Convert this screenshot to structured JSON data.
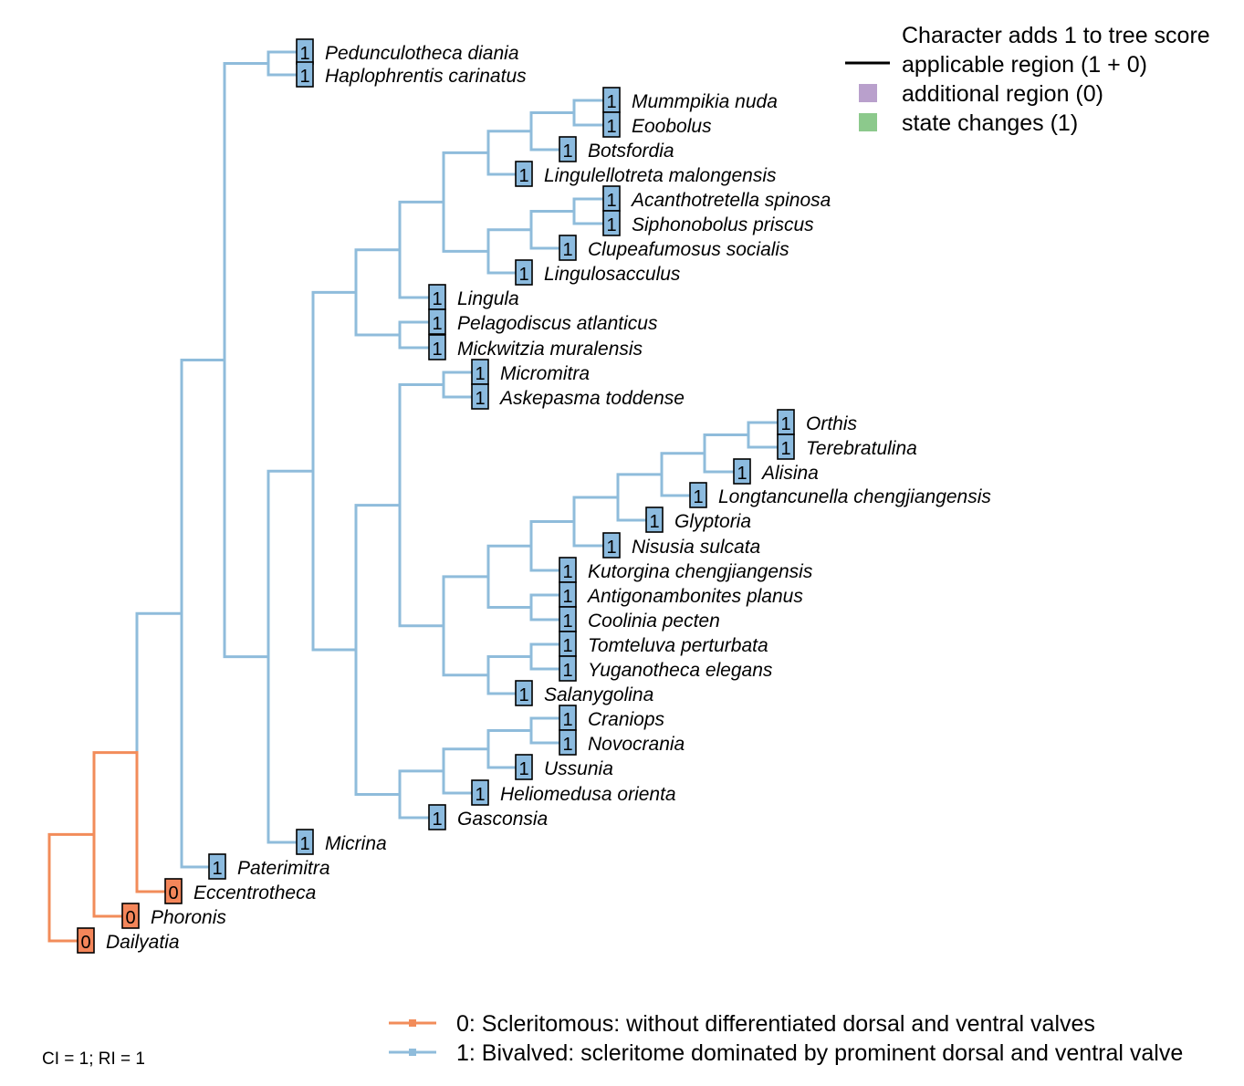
{
  "colors": {
    "state0": "#F28C5A",
    "state1": "#8FBCDB",
    "state0_box": "#F4865A",
    "state1_box": "#8CBBDF",
    "additional_region": "#B9A0CC",
    "state_changes": "#8CC98C"
  },
  "legend_top": {
    "title": "Character adds 1 to tree score",
    "items": [
      {
        "label": "applicable region (1 + 0)",
        "swatch": "line",
        "color": "#000000"
      },
      {
        "label": "additional region (0)",
        "swatch": "square",
        "color": "#B9A0CC"
      },
      {
        "label": "state changes (1)",
        "swatch": "square",
        "color": "#8CC98C"
      }
    ]
  },
  "legend_bottom": {
    "items": [
      {
        "label": "0: Scleritomous: without differentiated dorsal and ventral valves",
        "color": "#F28C5A"
      },
      {
        "label": "1: Bivalved: scleritome dominated by prominent dorsal and ventral valve",
        "color": "#8FBCDB"
      }
    ]
  },
  "stats": "CI = 1; RI = 1",
  "taxa": [
    {
      "name": "Pedunculotheca diania",
      "state": "1"
    },
    {
      "name": "Haplophrentis carinatus",
      "state": "1"
    },
    {
      "name": "Mummpikia nuda",
      "state": "1"
    },
    {
      "name": "Eoobolus",
      "state": "1"
    },
    {
      "name": "Botsfordia",
      "state": "1"
    },
    {
      "name": "Lingulellotreta malongensis",
      "state": "1"
    },
    {
      "name": "Acanthotretella spinosa",
      "state": "1"
    },
    {
      "name": "Siphonobolus priscus",
      "state": "1"
    },
    {
      "name": "Clupeafumosus socialis",
      "state": "1"
    },
    {
      "name": "Lingulosacculus",
      "state": "1"
    },
    {
      "name": "Lingula",
      "state": "1"
    },
    {
      "name": "Pelagodiscus atlanticus",
      "state": "1"
    },
    {
      "name": "Mickwitzia muralensis",
      "state": "1"
    },
    {
      "name": "Micromitra",
      "state": "1"
    },
    {
      "name": "Askepasma toddense",
      "state": "1"
    },
    {
      "name": "Orthis",
      "state": "1"
    },
    {
      "name": "Terebratulina",
      "state": "1"
    },
    {
      "name": "Alisina",
      "state": "1"
    },
    {
      "name": "Longtancunella chengjiangensis",
      "state": "1"
    },
    {
      "name": "Glyptoria",
      "state": "1"
    },
    {
      "name": "Nisusia sulcata",
      "state": "1"
    },
    {
      "name": "Kutorgina chengjiangensis",
      "state": "1"
    },
    {
      "name": "Antigonambonites planus",
      "state": "1"
    },
    {
      "name": "Coolinia pecten",
      "state": "1"
    },
    {
      "name": "Tomteluva perturbata",
      "state": "1"
    },
    {
      "name": "Yuganotheca elegans",
      "state": "1"
    },
    {
      "name": "Salanygolina",
      "state": "1"
    },
    {
      "name": "Craniops",
      "state": "1"
    },
    {
      "name": "Novocrania",
      "state": "1"
    },
    {
      "name": "Ussunia",
      "state": "1"
    },
    {
      "name": "Heliomedusa orienta",
      "state": "1"
    },
    {
      "name": "Gasconsia",
      "state": "1"
    },
    {
      "name": "Micrina",
      "state": "1"
    },
    {
      "name": "Paterimitra",
      "state": "1"
    },
    {
      "name": "Eccentrotheca",
      "state": "0"
    },
    {
      "name": "Phoronis",
      "state": "0"
    },
    {
      "name": "Dailyatia",
      "state": "0"
    }
  ]
}
